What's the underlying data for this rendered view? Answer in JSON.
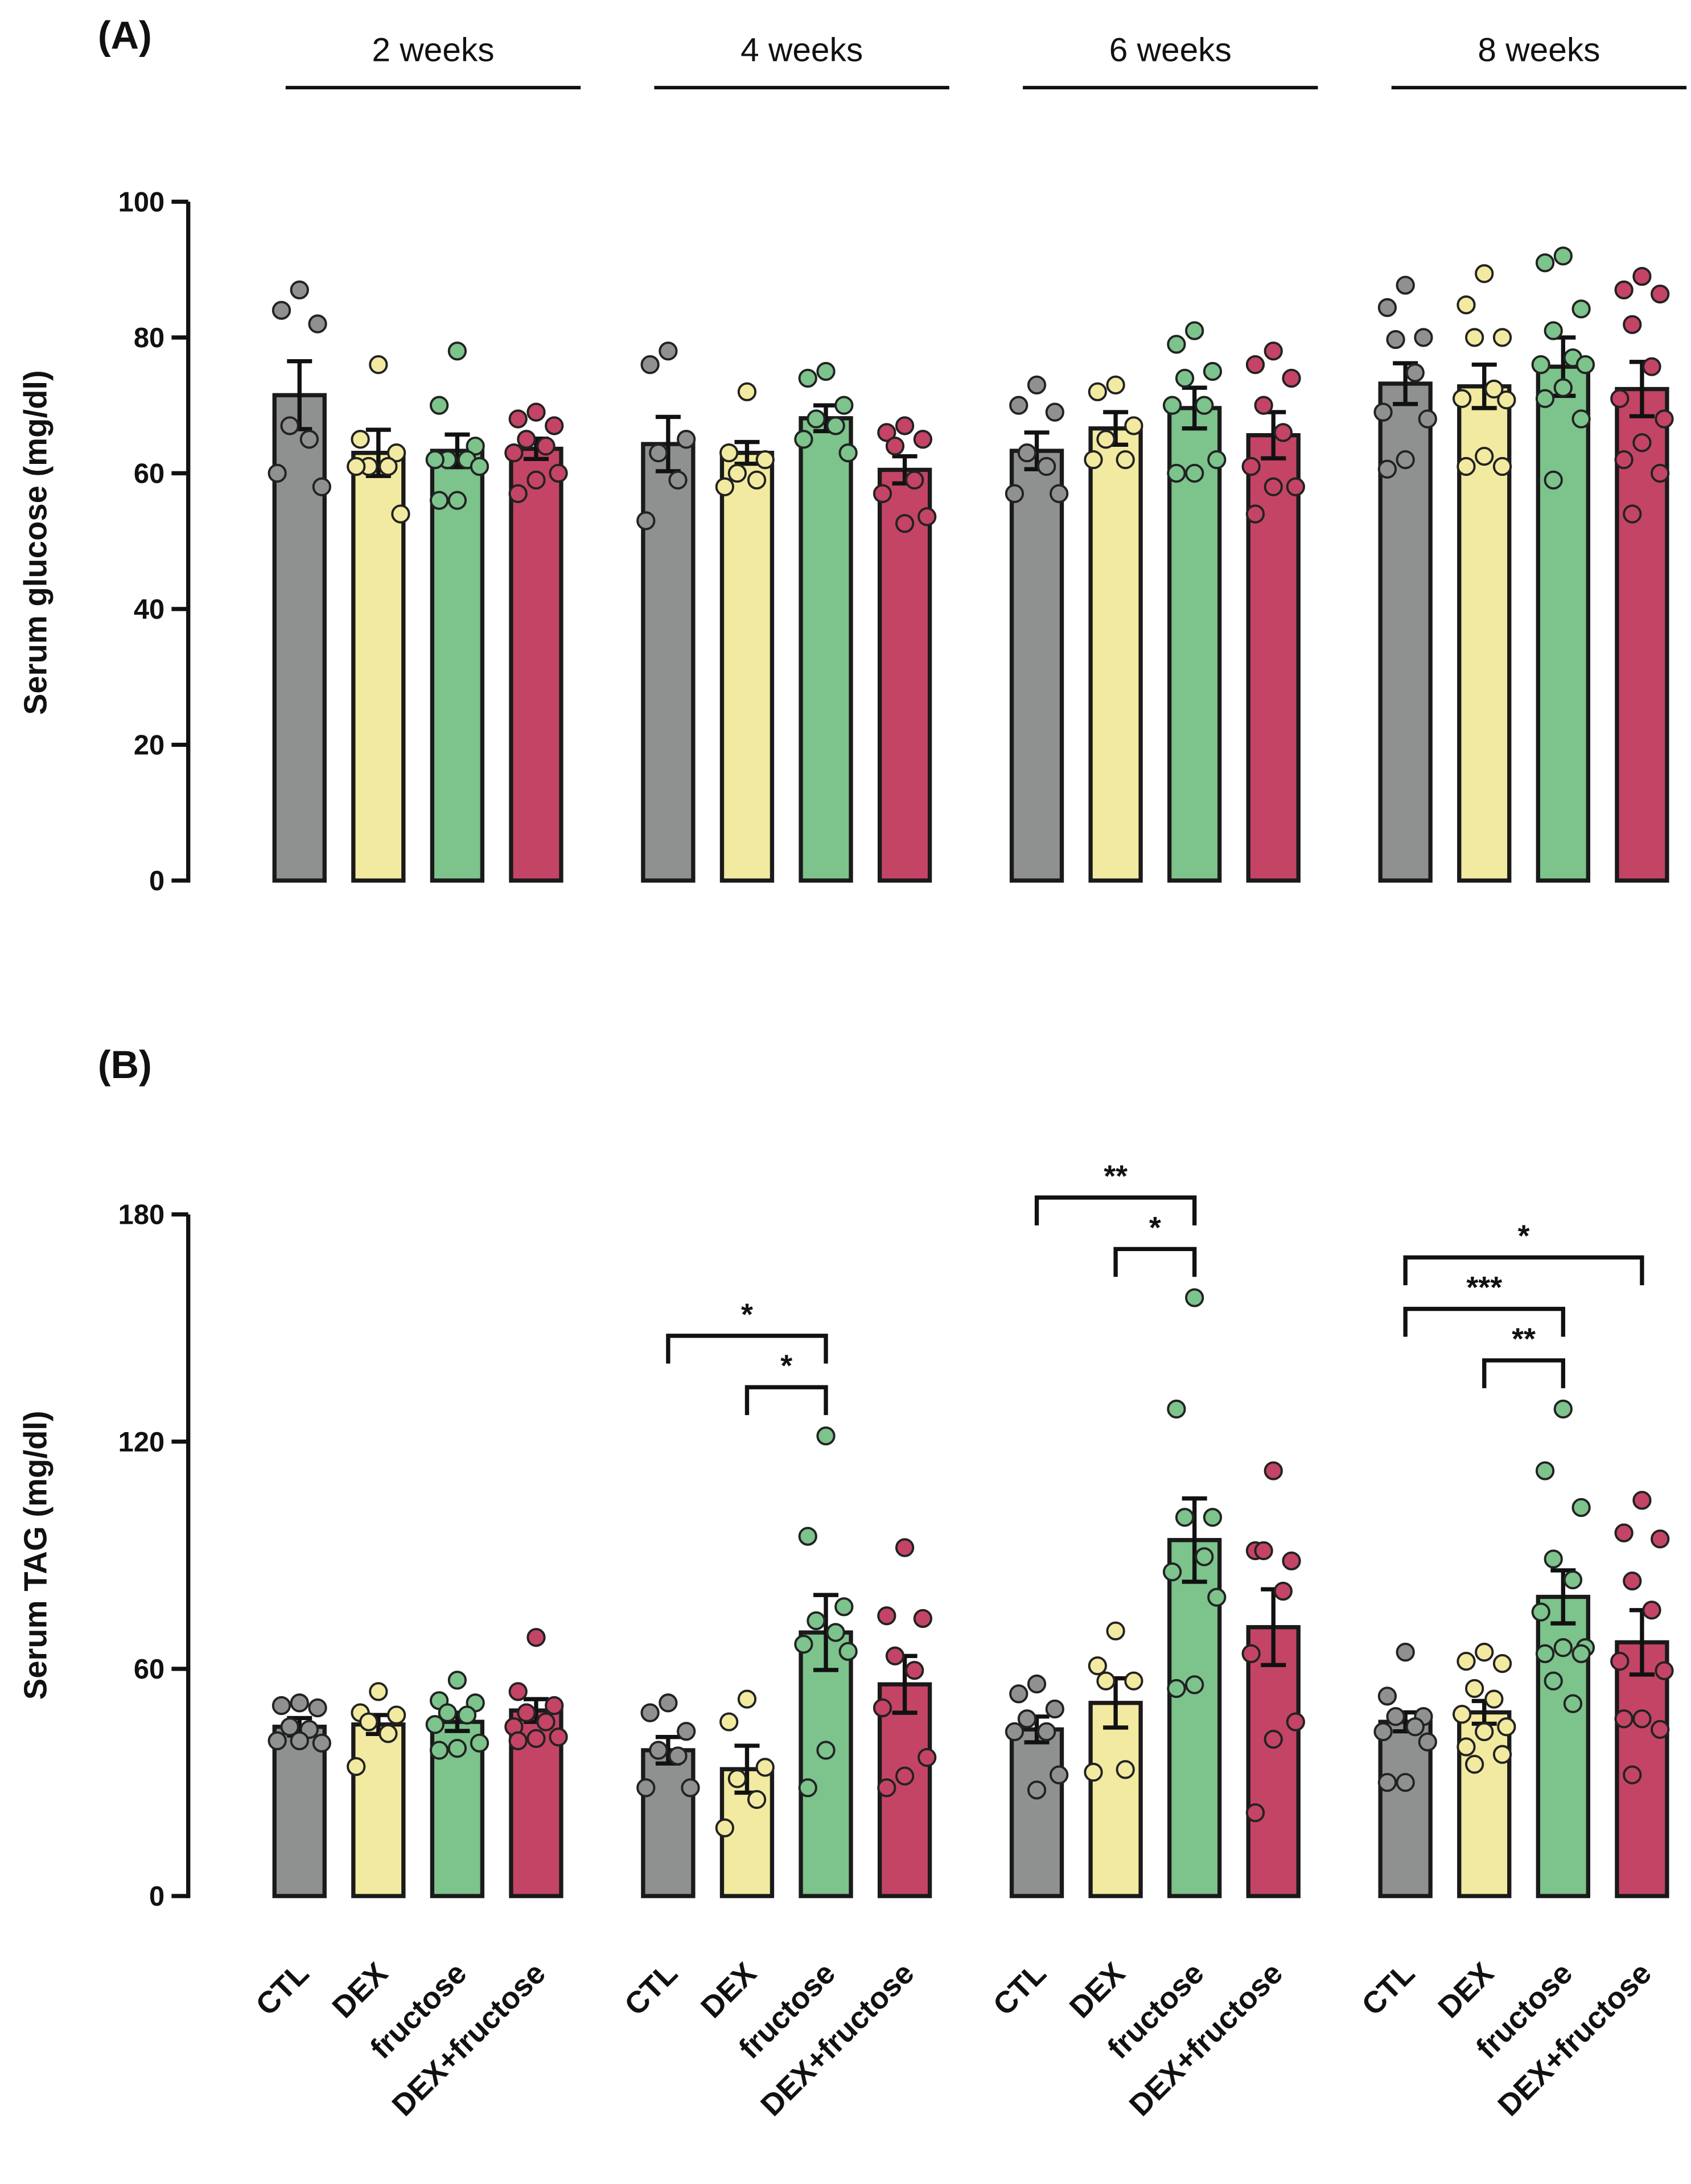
{
  "colors": {
    "CTL": "#8f9190",
    "DEX": "#f2eaa0",
    "fructose": "#7cc38c",
    "DEX+fructose": "#c44466",
    "outline": "#1a1a1a"
  },
  "chart_data": [
    {
      "type": "bar",
      "panel_label": "(A)",
      "ylabel": "Serum glucose (mg/dl)",
      "ylim": [
        0,
        100
      ],
      "yticks": [
        "0",
        "20",
        "40",
        "60",
        "80",
        "100"
      ],
      "groups": [
        "2 weeks",
        "4 weeks",
        "6 weeks",
        "8 weeks"
      ],
      "categories": [
        "CTL",
        "DEX",
        "fructose",
        "DEX+fructose"
      ],
      "error": "SEM",
      "bars": [
        [
          {
            "mean": 71.5,
            "sem": 5,
            "points": [
              87,
              84,
              82,
              67,
              65,
              60,
              58
            ]
          },
          {
            "mean": 63,
            "sem": 3.4,
            "points": [
              76,
              65,
              63,
              61,
              61,
              61,
              54
            ]
          },
          {
            "mean": 63.3,
            "sem": 2.4,
            "points": [
              78,
              70,
              64,
              62,
              62,
              62,
              61,
              56,
              56
            ]
          },
          {
            "mean": 63.6,
            "sem": 1.5,
            "points": [
              69,
              68,
              67,
              65,
              64,
              63,
              60,
              59,
              57
            ]
          }
        ],
        [
          {
            "mean": 64.3,
            "sem": 4,
            "points": [
              78,
              76,
              65,
              63,
              59,
              53
            ]
          },
          {
            "mean": 63,
            "sem": 1.6,
            "points": [
              72,
              63,
              62,
              60,
              59,
              58
            ]
          },
          {
            "mean": 68.1,
            "sem": 1.9,
            "points": [
              75,
              74,
              70,
              68,
              67,
              65,
              63
            ]
          },
          {
            "mean": 60.5,
            "sem": 2,
            "points": [
              67,
              66,
              65,
              64,
              59,
              57,
              53.6,
              52.6
            ]
          }
        ],
        [
          {
            "mean": 63.3,
            "sem": 2.7,
            "points": [
              73,
              70,
              69,
              63,
              61,
              57,
              57
            ]
          },
          {
            "mean": 66.6,
            "sem": 2.4,
            "points": [
              73,
              72,
              67,
              65,
              62,
              62
            ]
          },
          {
            "mean": 69.6,
            "sem": 3,
            "points": [
              81,
              79,
              75,
              74,
              70,
              70,
              62,
              60,
              60
            ]
          },
          {
            "mean": 65.6,
            "sem": 3.4,
            "points": [
              78,
              76,
              74,
              70,
              66,
              61,
              58,
              58,
              54
            ]
          }
        ],
        [
          {
            "mean": 73.2,
            "sem": 3,
            "points": [
              87.7,
              84.4,
              80,
              79.7,
              74.8,
              69,
              68,
              62,
              60.6
            ]
          },
          {
            "mean": 72.8,
            "sem": 3.2,
            "points": [
              89.4,
              84.8,
              80,
              80,
              72.4,
              71,
              70.8,
              62.5,
              61,
              61
            ]
          },
          {
            "mean": 75.7,
            "sem": 4.3,
            "points": [
              92,
              91,
              84.2,
              81,
              77,
              76,
              76,
              72.6,
              71,
              68,
              59
            ]
          },
          {
            "mean": 72.4,
            "sem": 4,
            "points": [
              89,
              87,
              86.4,
              81.9,
              75.7,
              71,
              68,
              64.5,
              62,
              60,
              54
            ]
          }
        ]
      ],
      "significance": []
    },
    {
      "type": "bar",
      "panel_label": "(B)",
      "ylabel": "Serum TAG (mg/dl)",
      "ylim": [
        0,
        180
      ],
      "yticks": [
        "0",
        "60",
        "120",
        "180"
      ],
      "groups": [
        "2 weeks",
        "4 weeks",
        "6 weeks",
        "8 weeks"
      ],
      "categories": [
        "CTL",
        "DEX",
        "fructose",
        "DEX+fructose"
      ],
      "error": "SEM",
      "bars": [
        [
          {
            "mean": 44.7,
            "sem": 2.3,
            "points": [
              51,
              50.3,
              49.7,
              44.7,
              44,
              41,
              40.4,
              41
            ]
          },
          {
            "mean": 45.3,
            "sem": 2.5,
            "points": [
              54,
              48.4,
              47.8,
              46,
              42.9,
              34.2
            ]
          },
          {
            "mean": 46,
            "sem": 2.4,
            "points": [
              57,
              51.6,
              51,
              48.4,
              47.8,
              45.3,
              40.4,
              39,
              38.5
            ]
          },
          {
            "mean": 49,
            "sem": 3,
            "points": [
              68.3,
              54,
              50.3,
              48.4,
              46,
              44.7,
              42,
              41.6,
              41
            ]
          }
        ],
        [
          {
            "mean": 38.5,
            "sem": 3.5,
            "points": [
              51,
              48.4,
              43.5,
              38.5,
              37,
              28.6,
              28.6
            ]
          },
          {
            "mean": 33.5,
            "sem": 6.2,
            "points": [
              52,
              46,
              34,
              31,
              25.5,
              18
            ]
          },
          {
            "mean": 69.6,
            "sem": 9.9,
            "points": [
              121.5,
              95,
              76.4,
              72.7,
              69.6,
              66.5,
              64.6,
              38.5,
              28.6
            ]
          },
          {
            "mean": 55.9,
            "sem": 7.5,
            "points": [
              92,
              74,
              73.3,
              63.4,
              59.6,
              49.7,
              36.6,
              31.7,
              28.6
            ]
          }
        ],
        [
          {
            "mean": 44,
            "sem": 3.4,
            "points": [
              56,
              53.4,
              49.4,
              46.8,
              43.4,
              43.4,
              32,
              28
            ]
          },
          {
            "mean": 51,
            "sem": 6.5,
            "points": [
              70,
              60.8,
              56.8,
              56.8,
              33.4,
              32.7
            ]
          },
          {
            "mean": 94,
            "sem": 11,
            "points": [
              158,
              128.6,
              100,
              100,
              89.6,
              85.6,
              78.9,
              55.8,
              54.8
            ]
          },
          {
            "mean": 71,
            "sem": 10,
            "points": [
              112.3,
              91.2,
              88.5,
              91.2,
              80.5,
              64,
              46,
              41.4,
              22
            ]
          }
        ],
        [
          {
            "mean": 46,
            "sem": 2.5,
            "points": [
              64.4,
              52.8,
              47.4,
              47.4,
              44.7,
              43.4,
              40.7,
              30,
              30
            ]
          },
          {
            "mean": 48.5,
            "sem": 3,
            "points": [
              64.4,
              62,
              61.4,
              54.8,
              52,
              48,
              44.7,
              43.4,
              39.4,
              37.4,
              34.8
            ]
          },
          {
            "mean": 79,
            "sem": 7,
            "points": [
              128.6,
              112.3,
              102.6,
              89,
              83.5,
              75,
              65.6,
              65.6,
              64,
              64,
              56.8,
              50.8
            ]
          },
          {
            "mean": 67,
            "sem": 8.5,
            "points": [
              104.5,
              95.9,
              94.3,
              83.2,
              75.5,
              62,
              59.5,
              46.8,
              46.8,
              44,
              32
            ]
          }
        ]
      ],
      "significance": [
        {
          "group": 1,
          "from": 0,
          "to": 2,
          "label": "*",
          "tier": 2
        },
        {
          "group": 1,
          "from": 1,
          "to": 2,
          "label": "*",
          "tier": 1
        },
        {
          "group": 2,
          "from": 0,
          "to": 2,
          "label": "**",
          "tier": 2
        },
        {
          "group": 2,
          "from": 1,
          "to": 2,
          "label": "*",
          "tier": 1
        },
        {
          "group": 3,
          "from": 0,
          "to": 3,
          "label": "*",
          "tier": 3
        },
        {
          "group": 3,
          "from": 0,
          "to": 2,
          "label": "***",
          "tier": 2
        },
        {
          "group": 3,
          "from": 1,
          "to": 2,
          "label": "**",
          "tier": 1
        }
      ]
    }
  ]
}
